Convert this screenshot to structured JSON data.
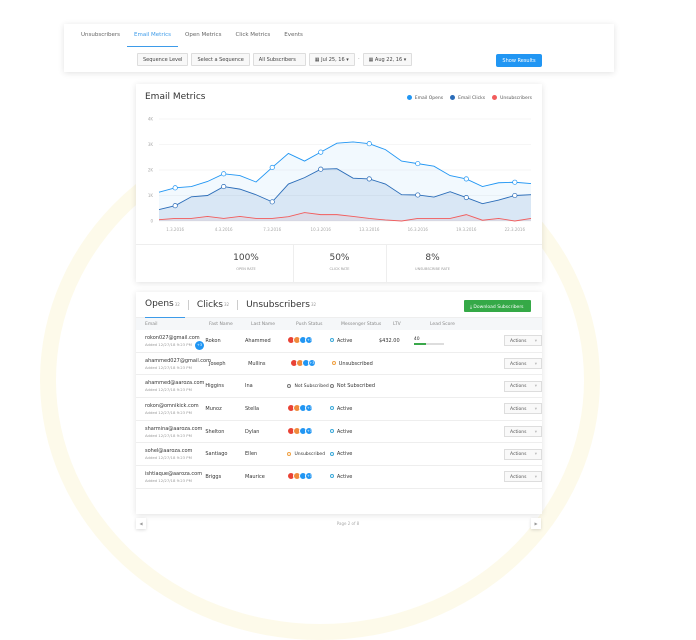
{
  "nav": {
    "tabs": [
      "Unsubscribers",
      "Email Metrics",
      "Open Metrics",
      "Click Metrics",
      "Events"
    ],
    "active": 1
  },
  "filters": {
    "level": "Sequence Level",
    "sequence": "Select a Sequence",
    "subscribers": "All Subscribers",
    "from": "Jul 25, 16",
    "to": "Aug 22, 16",
    "show": "Show Results"
  },
  "chart_card": {
    "title": "Email Metrics"
  },
  "chart_data": {
    "type": "area",
    "title": "Email Metrics",
    "x_labels": [
      "1.3.2016",
      "4.3.2016",
      "7.3.2016",
      "10.3.2016",
      "13.3.2016",
      "16.3.2016",
      "19.3.2016",
      "22.3.2016"
    ],
    "y_ticks": [
      "0",
      "1K",
      "2K",
      "3K",
      "4K"
    ],
    "ylim": [
      0,
      4000
    ],
    "grid": true,
    "legend": "top-right",
    "series": [
      {
        "name": "Email Opens",
        "color": "#2196f3",
        "values": [
          1130,
          1300,
          1350,
          1550,
          1850,
          1780,
          1530,
          2100,
          2650,
          2350,
          2700,
          3050,
          3100,
          3030,
          2800,
          2350,
          2250,
          2150,
          1780,
          1650,
          1350,
          1500,
          1520,
          1470
        ]
      },
      {
        "name": "Email Clicks",
        "color": "#2a6cb8",
        "values": [
          450,
          600,
          950,
          1000,
          1350,
          1250,
          1030,
          750,
          1450,
          1700,
          2030,
          2050,
          1680,
          1650,
          1450,
          1030,
          1020,
          940,
          1150,
          920,
          680,
          820,
          1000,
          1030
        ]
      },
      {
        "name": "Unsubscribers",
        "color": "#f25c5c",
        "values": [
          50,
          100,
          100,
          180,
          100,
          180,
          100,
          100,
          170,
          330,
          250,
          250,
          180,
          100,
          40,
          0,
          100,
          100,
          100,
          250,
          30,
          100,
          0,
          100
        ]
      }
    ]
  },
  "stats": [
    {
      "value": "100%",
      "label": "OPEN RATE"
    },
    {
      "value": "50%",
      "label": "CLICK RATE"
    },
    {
      "value": "8%",
      "label": "UNSUBSCRIBE RATE"
    }
  ],
  "table_tabs": [
    {
      "label": "Opens",
      "count": "32"
    },
    {
      "label": "Clicks",
      "count": "32"
    },
    {
      "label": "Unsubscribers",
      "count": "32"
    }
  ],
  "download": "Download Subscribers",
  "columns": [
    "Email",
    "Fast Name",
    "Last Name",
    "Push Status",
    "Messenger Status",
    "LTV",
    "Lead Score"
  ],
  "rows": [
    {
      "email": "rokon027@gmail.com",
      "added": "Added 12/27/18 9:23 PM",
      "first": "Rokon",
      "last": "Ahammed",
      "push": "icons",
      "push_more": "+3",
      "messenger": "Active",
      "ltv": "$432.00",
      "score": "40",
      "score_pct": 40,
      "badge": "+3"
    },
    {
      "email": "ahammed027@gmail.com",
      "added": "Added 12/27/18 9:23 PM",
      "first": "Joseph",
      "last": "Mullins",
      "push": "icons",
      "push_more": "+3",
      "messenger": "Unsubscribed"
    },
    {
      "email": "ahammed@aaroza.com",
      "added": "Added 12/27/18 9:23 PM",
      "first": "Higgins",
      "last": "Ina",
      "push": "Not Subscribed",
      "messenger": "Not Subscribed"
    },
    {
      "email": "rokon@omnikick.com",
      "added": "Added 12/27/18 9:23 PM",
      "first": "Munoz",
      "last": "Stella",
      "push": "icons",
      "push_more": "+3",
      "messenger": "Active"
    },
    {
      "email": "sharmina@aaroza.com",
      "added": "Added 12/27/18 9:23 PM",
      "first": "Shelton",
      "last": "Dylan",
      "push": "icons",
      "push_more": "+3",
      "messenger": "Active"
    },
    {
      "email": "sohel@aaroza.com",
      "added": "Added 12/27/18 9:23 PM",
      "first": "Santiago",
      "last": "Ellen",
      "push": "Unsubscribed",
      "messenger": "Active"
    },
    {
      "email": "ishtiaque@aaroza.com",
      "added": "Added 12/27/18 9:23 PM",
      "first": "Briggs",
      "last": "Maurice",
      "push": "icons",
      "push_more": "+3",
      "messenger": "Active"
    }
  ],
  "actions_label": "Actions",
  "pagination": {
    "text": "Page 2 of 8",
    "prev": "◀",
    "next": "▶"
  }
}
